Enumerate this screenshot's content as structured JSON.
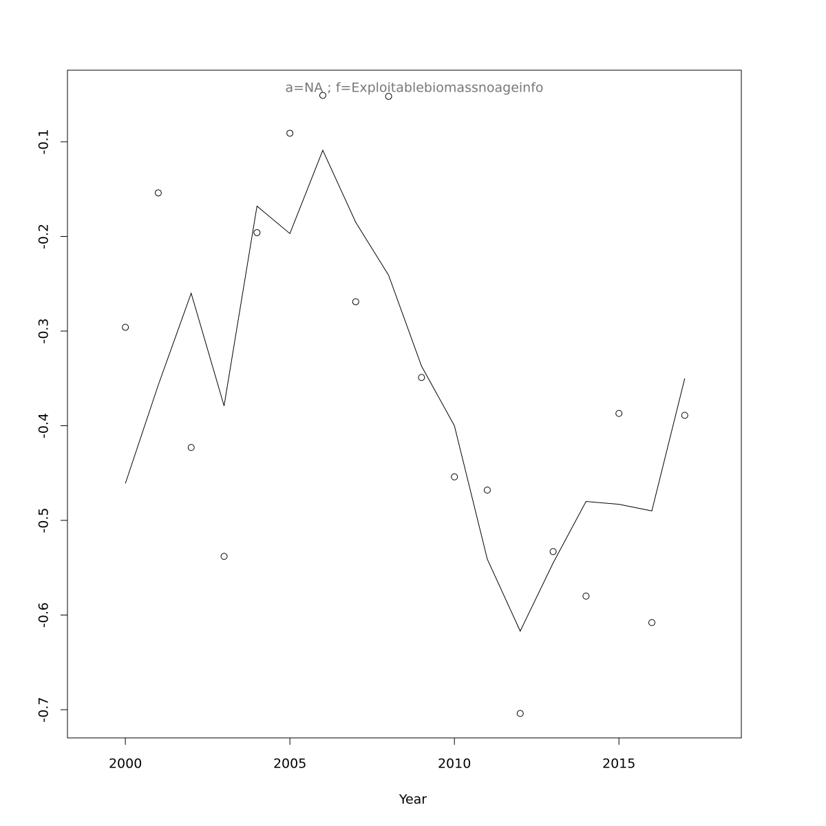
{
  "chart_data": {
    "type": "scatter",
    "title": "a=NA  ;  f=Exploitablebiomassnoageinfo",
    "xlabel": "Year",
    "x": [
      2000,
      2001,
      2002,
      2003,
      2004,
      2005,
      2006,
      2007,
      2008,
      2009,
      2010,
      2011,
      2012,
      2013,
      2014,
      2015,
      2016,
      2017
    ],
    "series": [
      {
        "type": "scatter",
        "color": "#000000",
        "values": [
          -0.296,
          -0.154,
          -0.423,
          -0.538,
          -0.196,
          -0.091,
          -0.051,
          -0.269,
          -0.052,
          -0.349,
          -0.454,
          -0.468,
          -0.704,
          -0.533,
          -0.58,
          -0.387,
          -0.608,
          -0.389
        ]
      },
      {
        "type": "line",
        "color": "#000000",
        "values": [
          -0.461,
          -0.357,
          -0.26,
          -0.379,
          -0.168,
          -0.197,
          -0.109,
          -0.185,
          -0.241,
          -0.337,
          -0.4,
          -0.541,
          -0.617,
          -0.545,
          -0.48,
          -0.483,
          -0.49,
          -0.35
        ]
      }
    ],
    "xlim": [
      1998.24,
      2018.72
    ],
    "xticks": [
      2000,
      2005,
      2010,
      2015
    ],
    "ylim": [
      -0.7298,
      -0.0244
    ],
    "yticks": [
      -0.1,
      -0.2,
      -0.3,
      -0.4,
      -0.5,
      -0.6,
      -0.7
    ]
  }
}
